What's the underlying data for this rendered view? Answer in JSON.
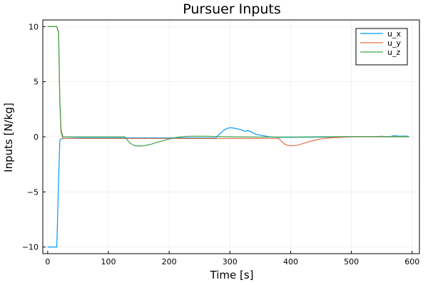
{
  "chart_data": {
    "type": "line",
    "title": "Pursuer Inputs",
    "xlabel": "Time [s]",
    "ylabel": "Inputs [N/kg]",
    "xlim": [
      -8,
      612
    ],
    "ylim": [
      -10.6,
      10.6
    ],
    "xticks": [
      0,
      100,
      200,
      300,
      400,
      500,
      600
    ],
    "yticks": [
      10,
      5,
      0,
      -5,
      -10
    ],
    "xtick_labels": [
      "0",
      "100",
      "200",
      "300",
      "400",
      "500",
      "600"
    ],
    "ytick_labels": [
      "10",
      "5",
      "0",
      "−5",
      "−10"
    ],
    "grid": true,
    "legend_position": "top-right",
    "series": [
      {
        "name": "u_x",
        "color": "#009AFA",
        "x": [
          0,
          15,
          18,
          20,
          22,
          25,
          40,
          60,
          100,
          150,
          200,
          250,
          270,
          277,
          280,
          285,
          290,
          295,
          300,
          305,
          310,
          315,
          320,
          325,
          330,
          335,
          340,
          345,
          350,
          355,
          360,
          365,
          380,
          400,
          450,
          500,
          520,
          540,
          550,
          560,
          570,
          580,
          590,
          595
        ],
        "y": [
          -10,
          -10,
          -4,
          -0.3,
          -0.2,
          -0.15,
          -0.12,
          -0.1,
          -0.1,
          -0.1,
          -0.1,
          -0.1,
          -0.1,
          -0.1,
          0.1,
          0.35,
          0.6,
          0.75,
          0.82,
          0.8,
          0.75,
          0.68,
          0.6,
          0.5,
          0.55,
          0.45,
          0.3,
          0.2,
          0.15,
          0.1,
          0.05,
          0.0,
          -0.05,
          -0.05,
          -0.03,
          0.0,
          0.02,
          0.0,
          0.05,
          -0.02,
          0.1,
          0.05,
          0.07,
          0.03
        ]
      },
      {
        "name": "u_y",
        "color": "#E26F46",
        "x": [
          0,
          15,
          18,
          20,
          22,
          25,
          60,
          100,
          150,
          200,
          250,
          300,
          350,
          380,
          385,
          390,
          395,
          400,
          410,
          420,
          430,
          440,
          450,
          470,
          500,
          530,
          560,
          595
        ],
        "y": [
          10,
          10,
          9.4,
          3,
          0.4,
          -0.15,
          -0.15,
          -0.15,
          -0.15,
          -0.15,
          -0.15,
          -0.15,
          -0.15,
          -0.15,
          -0.4,
          -0.65,
          -0.78,
          -0.82,
          -0.78,
          -0.62,
          -0.45,
          -0.3,
          -0.18,
          -0.08,
          0.0,
          0.0,
          0.0,
          0.0
        ]
      },
      {
        "name": "u_z",
        "color": "#3DA44D",
        "x": [
          0,
          15,
          18,
          20,
          22,
          25,
          60,
          100,
          127,
          135,
          143,
          150,
          160,
          170,
          180,
          190,
          200,
          210,
          220,
          230,
          240,
          260,
          280,
          300,
          350,
          400,
          450,
          500,
          550,
          595
        ],
        "y": [
          10,
          10,
          9.5,
          3.5,
          0.7,
          0.0,
          0.0,
          0.0,
          0.0,
          -0.55,
          -0.8,
          -0.85,
          -0.8,
          -0.68,
          -0.5,
          -0.35,
          -0.2,
          -0.08,
          0.0,
          0.04,
          0.05,
          0.05,
          0.02,
          0.0,
          -0.02,
          -0.02,
          0.0,
          0.02,
          0.02,
          0.01
        ]
      }
    ]
  }
}
